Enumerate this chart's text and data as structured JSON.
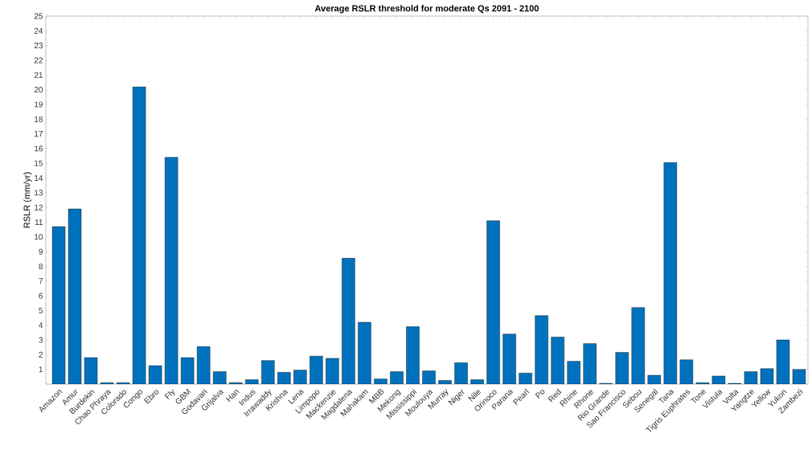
{
  "chart_data": {
    "type": "bar",
    "title": "Average RSLR threshold for moderate Qs 2091 - 2100",
    "ylabel": "RSLR (mm/yr)",
    "categories": [
      "Amazon",
      "Amur",
      "Burdekin",
      "Chao Phraya",
      "Colorado",
      "Congo",
      "Ebro",
      "Fly",
      "GBM",
      "Godavari",
      "Grijalva",
      "Han",
      "Indus",
      "Irrawaddy",
      "Krishna",
      "Lena",
      "Limpopo",
      "Mackenzie",
      "Magdalena",
      "Mahakam",
      "MBB",
      "Mekong",
      "Mississippi",
      "Moulouya",
      "Murray",
      "Niger",
      "Nile",
      "Orinoco",
      "Parana",
      "Pearl",
      "Po",
      "Red",
      "Rhine",
      "Rhone",
      "Rio Grande",
      "Sao Francisco",
      "Sebou",
      "Senegal",
      "Tana",
      "Tigris Euphrates",
      "Tone",
      "Vistula",
      "Volta",
      "Yangtze",
      "Yellow",
      "Yukon",
      "Zambezi"
    ],
    "values": [
      10.7,
      11.9,
      1.8,
      0.1,
      0.1,
      20.2,
      1.25,
      15.4,
      1.8,
      2.55,
      0.85,
      0.1,
      0.3,
      1.6,
      0.8,
      0.95,
      1.9,
      1.75,
      8.55,
      4.2,
      0.35,
      0.85,
      3.9,
      0.9,
      0.25,
      1.45,
      0.3,
      11.1,
      3.4,
      0.75,
      4.65,
      3.2,
      1.55,
      2.75,
      0.05,
      2.15,
      5.2,
      0.6,
      15.05,
      1.65,
      0.1,
      0.55,
      0.05,
      0.85,
      1.05,
      3.0,
      1.0
    ],
    "color": "#0072bd",
    "ylim": [
      0,
      25
    ],
    "yticks": [
      {
        "value": 0,
        "label": null
      },
      1,
      2,
      3,
      4,
      5,
      6,
      7,
      8,
      9,
      10,
      11,
      12,
      13,
      14,
      15,
      16,
      17,
      18,
      19,
      20,
      21,
      22,
      23,
      24,
      25
    ],
    "grid": false
  }
}
